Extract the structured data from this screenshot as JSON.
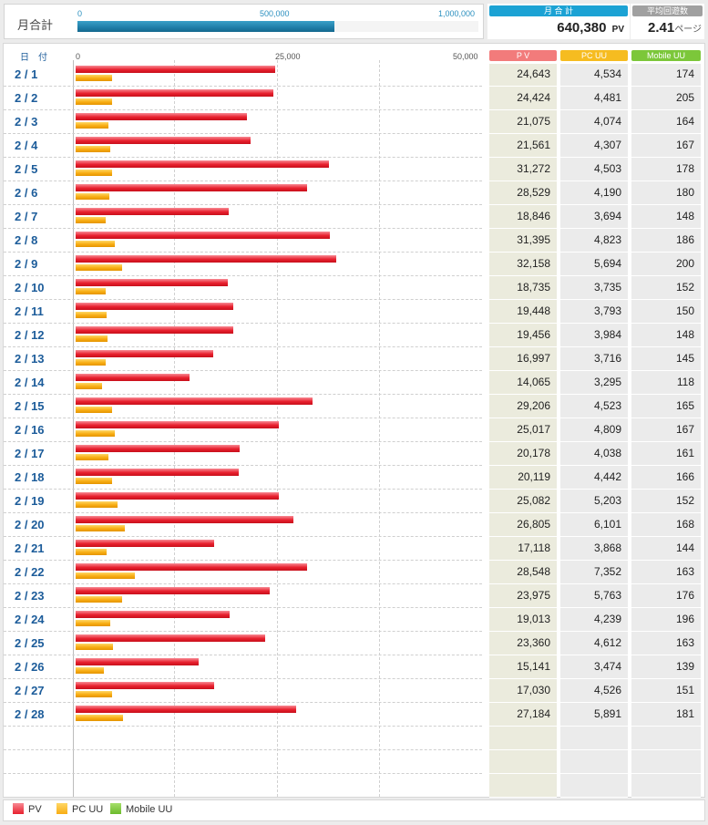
{
  "summary": {
    "month_total_label": "月合計",
    "gauge_ticks": [
      "0",
      "500,000",
      "1,000,000"
    ],
    "gauge_value": 640380,
    "gauge_max": 1000000,
    "total_header": "月 合 計",
    "total_value": "640,380",
    "total_unit": "PV",
    "avg_header": "平均回遊数",
    "avg_value": "2.41",
    "avg_unit": "ページ"
  },
  "table": {
    "date_header": "日　付",
    "pv_header": "P V",
    "pcuu_header": "PC UU",
    "mobile_header": "Mobile UU"
  },
  "legend": {
    "pv": "PV",
    "pcuu": "PC UU",
    "mobile": "Mobile UU"
  },
  "colors": {
    "pv": "#e8202e",
    "pcuu": "#f8ad14",
    "mobile": "#7cc73a",
    "gauge": "#1f7ea8"
  },
  "chart_data": {
    "type": "bar",
    "orientation": "horizontal",
    "x_ticks": [
      "0",
      "25,000",
      "50,000"
    ],
    "xlim": [
      0,
      50000
    ],
    "categories": [
      "2 / 1",
      "2 / 2",
      "2 / 3",
      "2 / 4",
      "2 / 5",
      "2 / 6",
      "2 / 7",
      "2 / 8",
      "2 / 9",
      "2 / 10",
      "2 / 11",
      "2 / 12",
      "2 / 13",
      "2 / 14",
      "2 / 15",
      "2 / 16",
      "2 / 17",
      "2 / 18",
      "2 / 19",
      "2 / 20",
      "2 / 21",
      "2 / 22",
      "2 / 23",
      "2 / 24",
      "2 / 25",
      "2 / 26",
      "2 / 27",
      "2 / 28"
    ],
    "series": [
      {
        "name": "PV",
        "values": [
          24643,
          24424,
          21075,
          21561,
          31272,
          28529,
          18846,
          31395,
          32158,
          18735,
          19448,
          19456,
          16997,
          14065,
          29206,
          25017,
          20178,
          20119,
          25082,
          26805,
          17118,
          28548,
          23975,
          19013,
          23360,
          15141,
          17030,
          27184
        ]
      },
      {
        "name": "PC UU",
        "values": [
          4534,
          4481,
          4074,
          4307,
          4503,
          4190,
          3694,
          4823,
          5694,
          3735,
          3793,
          3984,
          3716,
          3295,
          4523,
          4809,
          4038,
          4442,
          5203,
          6101,
          3868,
          7352,
          5763,
          4239,
          4612,
          3474,
          4526,
          5891
        ]
      },
      {
        "name": "Mobile UU",
        "values": [
          174,
          205,
          164,
          167,
          178,
          180,
          148,
          186,
          200,
          152,
          150,
          148,
          145,
          118,
          165,
          167,
          161,
          166,
          152,
          168,
          144,
          163,
          176,
          196,
          163,
          139,
          151,
          181
        ]
      }
    ],
    "grid": true,
    "legend": "bottom-left"
  }
}
